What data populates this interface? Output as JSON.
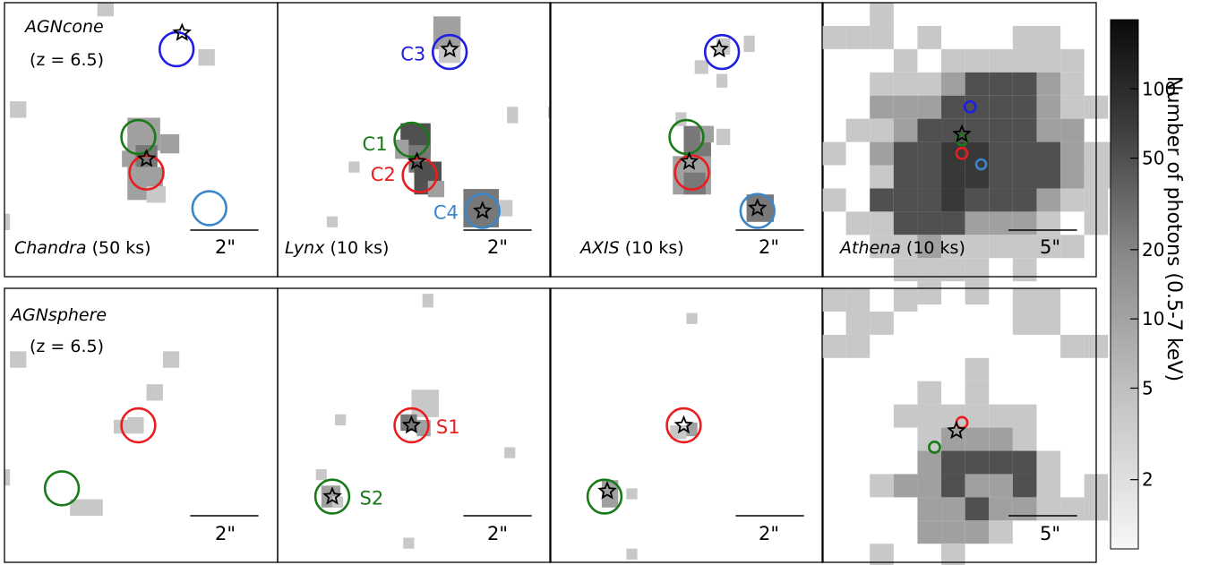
{
  "rows": [
    {
      "id": "agncone",
      "model_label": "AGNcone",
      "redshift_label": "(z = 6.5)",
      "panels": [
        {
          "id": "chandra",
          "telescope": "Chandra",
          "exposure": "(50 ks)",
          "scalebar_label": "2\"",
          "pixels": [
            [
              0.35,
              0.0,
              0.06,
              0.06,
              1
            ],
            [
              0.74,
              0.18,
              0.06,
              0.06,
              1
            ],
            [
              0.05,
              0.36,
              0.06,
              0.06,
              1
            ],
            [
              0.44,
              0.42,
              0.13,
              0.14,
              2
            ],
            [
              0.49,
              0.48,
              0.06,
              0.06,
              3
            ],
            [
              0.59,
              0.5,
              0.06,
              0.06,
              1
            ],
            [
              0.43,
              0.56,
              0.13,
              0.12,
              2
            ],
            [
              0.52,
              0.65,
              0.07,
              0.07,
              1
            ],
            [
              0.0,
              0.78,
              0.02,
              0.06,
              1
            ]
          ],
          "circles": [
            {
              "label": "",
              "color": "blue",
              "r": 0.063,
              "star": true
            }
          ],
          "stars": []
        },
        {
          "id": "lynx",
          "telescope": "Lynx",
          "exposure": "(10 ks)",
          "scalebar_label": "2\"",
          "pixels": [],
          "circles": [],
          "stars": []
        },
        {
          "id": "axis",
          "telescope": "AXIS",
          "exposure": "(10 ks)",
          "scalebar_label": "2\"",
          "pixels": [],
          "circles": [],
          "stars": []
        },
        {
          "id": "athena",
          "telescope": "Athena",
          "exposure": "(10 ks)",
          "scalebar_label": "5\"",
          "pixels": [],
          "circles": [],
          "stars": []
        }
      ]
    },
    {
      "id": "agnsphere",
      "model_label": "AGNsphere",
      "redshift_label": "(z = 6.5)",
      "panels": [
        {
          "id": "chandra2",
          "telescope": "",
          "exposure": "",
          "scalebar_label": "2\"",
          "pixels": [],
          "circles": [],
          "stars": []
        },
        {
          "id": "lynx2",
          "telescope": "",
          "exposure": "",
          "scalebar_label": "2\"",
          "pixels": [],
          "circles": [],
          "stars": []
        },
        {
          "id": "axis2",
          "telescope": "",
          "exposure": "",
          "scalebar_label": "2\"",
          "pixels": [],
          "circles": [],
          "stars": []
        },
        {
          "id": "athena2",
          "telescope": "",
          "exposure": "",
          "scalebar_label": "5\"",
          "pixels": [],
          "circles": [],
          "stars": []
        }
      ]
    }
  ],
  "colorbar": {
    "label": "Number of photons (0.5-7 keV)",
    "ticks": [
      "100",
      "50",
      "20",
      "10",
      "5",
      "2"
    ],
    "scale": "log"
  },
  "colors": {
    "blue": "#1f1fe0",
    "green": "#1a7a1a",
    "red": "#e81e1e",
    "lightblue": "#3a86c8",
    "gray_levels": [
      "#c8c8c8",
      "#a0a0a0",
      "#787878",
      "#505050",
      "#383838"
    ]
  }
}
